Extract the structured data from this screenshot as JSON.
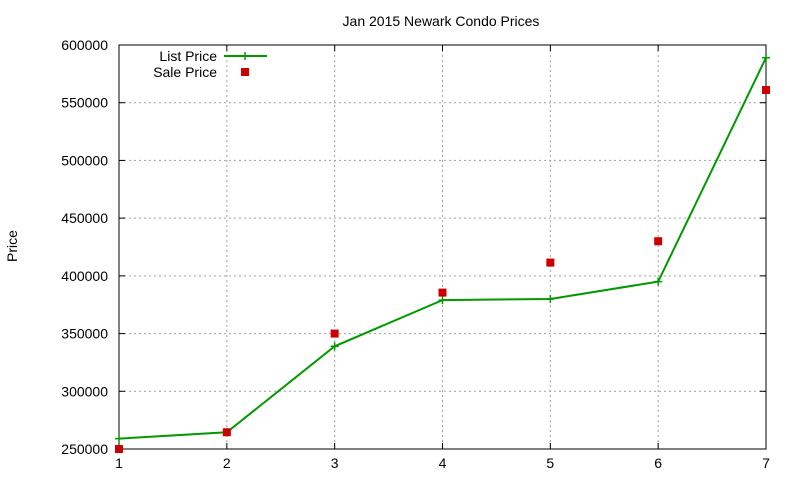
{
  "chart_data": {
    "type": "line",
    "title": "Jan 2015 Newark Condo Prices",
    "xlabel": "",
    "ylabel": "Price",
    "x": [
      1,
      2,
      3,
      4,
      5,
      6,
      7
    ],
    "xlim": [
      1,
      7
    ],
    "ylim": [
      250000,
      600000
    ],
    "xticks": [
      "1",
      "2",
      "3",
      "4",
      "5",
      "6",
      "7"
    ],
    "yticks": [
      "250000",
      "300000",
      "350000",
      "400000",
      "450000",
      "500000",
      "550000",
      "600000"
    ],
    "ytick_values": [
      250000,
      300000,
      350000,
      400000,
      450000,
      500000,
      550000,
      600000
    ],
    "grid": true,
    "legend_position": "top-left",
    "series": [
      {
        "name": "List Price",
        "style": "line-with-plus-markers",
        "color": "#009900",
        "values": [
          259000,
          264500,
          339000,
          379000,
          380000,
          395000,
          589000
        ]
      },
      {
        "name": "Sale Price",
        "style": "square-markers",
        "color": "#cc0000",
        "values": [
          250000,
          264500,
          350000,
          385500,
          411500,
          430000,
          561000
        ]
      }
    ]
  }
}
